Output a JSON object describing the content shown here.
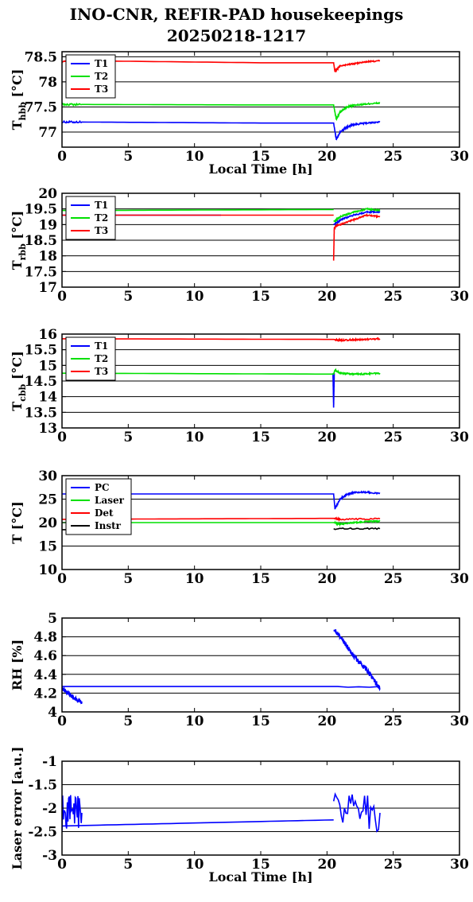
{
  "title_line1": "INO-CNR, REFIR-PAD housekeepings",
  "title_line2": "20250218-1217",
  "colors": {
    "blue": "#0000ff",
    "green": "#00e000",
    "red": "#ff0000",
    "black": "#000000"
  },
  "chart_data": [
    {
      "type": "line",
      "ylabel_main": "T",
      "ylabel_sub": "hbb",
      "ylabel_suffix": " [°C]",
      "xlabel": "Local Time [h]",
      "xlim": [
        0,
        30
      ],
      "ylim": [
        76.7,
        78.6
      ],
      "yticks": [
        77,
        77.5,
        78,
        78.5
      ],
      "ytick_labels": [
        "77",
        "77.5",
        "78",
        "78.5"
      ],
      "xticks": [
        0,
        5,
        10,
        15,
        20,
        25,
        30
      ],
      "xtick_labels": [
        "0",
        "5",
        "10",
        "15",
        "20",
        "25",
        "30"
      ],
      "grid": "y",
      "legend": "top-left",
      "series": [
        {
          "name": "T1",
          "color": "blue",
          "x": [
            0,
            1.5,
            15,
            20.5,
            20.7,
            21,
            21.5,
            22,
            23,
            24
          ],
          "y": [
            77.2,
            77.2,
            77.18,
            77.18,
            76.85,
            77.0,
            77.1,
            77.15,
            77.18,
            77.2
          ]
        },
        {
          "name": "T2",
          "color": "green",
          "x": [
            0,
            1.5,
            15,
            20.5,
            20.7,
            21,
            21.5,
            22,
            23,
            24
          ],
          "y": [
            77.55,
            77.55,
            77.54,
            77.54,
            77.25,
            77.4,
            77.5,
            77.53,
            77.56,
            77.58
          ]
        },
        {
          "name": "T3",
          "color": "red",
          "x": [
            0,
            1.5,
            15,
            20.5,
            20.6,
            21,
            22,
            23,
            24
          ],
          "y": [
            78.4,
            78.42,
            78.38,
            78.38,
            78.2,
            78.32,
            78.36,
            78.4,
            78.42
          ]
        }
      ]
    },
    {
      "type": "line",
      "ylabel_main": "T",
      "ylabel_sub": "rbb",
      "ylabel_suffix": " [°C]",
      "xlabel": "",
      "xlim": [
        0,
        30
      ],
      "ylim": [
        17,
        20
      ],
      "yticks": [
        17,
        17.5,
        18,
        18.5,
        19,
        19.5,
        20
      ],
      "ytick_labels": [
        "17",
        "17.5",
        "18",
        "18.5",
        "19",
        "19.5",
        "20"
      ],
      "xticks": [
        0,
        5,
        10,
        15,
        20,
        25,
        30
      ],
      "xtick_labels": [
        "0",
        "5",
        "10",
        "15",
        "20",
        "25",
        "30"
      ],
      "grid": "y",
      "legend": "top-left",
      "series": [
        {
          "name": "T1",
          "color": "blue",
          "x": [
            0,
            12
          ],
          "y": [
            19.3,
            19.3
          ],
          "x2": [
            20.5,
            20.7,
            21,
            22,
            23,
            24
          ],
          "y2": [
            19.0,
            19.05,
            19.15,
            19.3,
            19.4,
            19.4
          ]
        },
        {
          "name": "T2",
          "color": "green",
          "x": [
            0,
            20.5
          ],
          "y": [
            19.45,
            19.48
          ],
          "x2": [
            20.5,
            20.7,
            21,
            22,
            23,
            24
          ],
          "y2": [
            19.1,
            19.15,
            19.25,
            19.4,
            19.5,
            19.45
          ]
        },
        {
          "name": "T3",
          "color": "red",
          "x": [
            0,
            20.5
          ],
          "y": [
            19.3,
            19.3
          ],
          "x2": [
            20.5,
            20.55,
            20.7,
            21,
            22,
            23,
            24
          ],
          "y2": [
            17.85,
            18.9,
            18.95,
            19.0,
            19.15,
            19.3,
            19.25
          ]
        }
      ]
    },
    {
      "type": "line",
      "ylabel_main": "T",
      "ylabel_sub": "cbb",
      "ylabel_suffix": " [°C]",
      "xlabel": "",
      "xlim": [
        0,
        30
      ],
      "ylim": [
        13,
        16
      ],
      "yticks": [
        13,
        13.5,
        14,
        14.5,
        15,
        15.5,
        16
      ],
      "ytick_labels": [
        "13",
        "13.5",
        "14",
        "14.5",
        "15",
        "15.5",
        "16"
      ],
      "xticks": [
        0,
        5,
        10,
        15,
        20,
        25,
        30
      ],
      "xtick_labels": [
        "0",
        "5",
        "10",
        "15",
        "20",
        "25",
        "30"
      ],
      "grid": "y",
      "legend": "top-left",
      "series": [
        {
          "name": "T1",
          "color": "blue",
          "x": [
            20.45,
            20.5,
            20.55
          ],
          "y": [
            14.75,
            13.65,
            14.75
          ]
        },
        {
          "name": "T2",
          "color": "green",
          "x": [
            0,
            20.5,
            20.6,
            21,
            22,
            23,
            24
          ],
          "y": [
            14.75,
            14.72,
            14.85,
            14.75,
            14.72,
            14.73,
            14.75
          ]
        },
        {
          "name": "T3",
          "color": "red",
          "x": [
            0,
            20.5,
            21,
            22,
            23,
            24
          ],
          "y": [
            15.85,
            15.83,
            15.8,
            15.82,
            15.83,
            15.85
          ]
        }
      ]
    },
    {
      "type": "line",
      "ylabel_main": "T",
      "ylabel_sub": "",
      "ylabel_suffix": " [°C]",
      "xlabel": "",
      "xlim": [
        0,
        30
      ],
      "ylim": [
        10,
        30
      ],
      "yticks": [
        10,
        15,
        20,
        25,
        30
      ],
      "ytick_labels": [
        "10",
        "15",
        "20",
        "25",
        "30"
      ],
      "xticks": [
        0,
        5,
        10,
        15,
        20,
        25,
        30
      ],
      "xtick_labels": [
        "0",
        "5",
        "10",
        "15",
        "20",
        "25",
        "30"
      ],
      "grid": "y",
      "legend": "top-left",
      "series": [
        {
          "name": "PC",
          "color": "blue",
          "x": [
            0,
            20.5,
            20.6,
            21,
            21.5,
            22,
            23,
            24
          ],
          "y": [
            26.1,
            26.1,
            23.0,
            25.0,
            26.0,
            26.4,
            26.5,
            26.2
          ]
        },
        {
          "name": "Laser",
          "color": "green",
          "x": [
            0,
            20.5,
            21,
            22,
            23,
            24
          ],
          "y": [
            20.0,
            20.0,
            19.7,
            20.0,
            20.2,
            20.3
          ]
        },
        {
          "name": "Det",
          "color": "red",
          "x": [
            0,
            10,
            20.5,
            21,
            24
          ],
          "y": [
            20.7,
            20.8,
            20.9,
            20.7,
            20.8
          ]
        },
        {
          "name": "Instr",
          "color": "black",
          "x": [
            0,
            1.5
          ],
          "y": [
            18.5,
            18.5
          ],
          "x2": [
            20.5,
            24
          ],
          "y2": [
            18.7,
            18.7
          ]
        }
      ]
    },
    {
      "type": "line",
      "ylabel_main": "RH [%]",
      "ylabel_sub": "",
      "ylabel_suffix": "",
      "xlabel": "",
      "xlim": [
        0,
        30
      ],
      "ylim": [
        4,
        5
      ],
      "yticks": [
        4,
        4.2,
        4.4,
        4.6,
        4.8,
        5
      ],
      "ytick_labels": [
        "4",
        "4.2",
        "4.4",
        "4.6",
        "4.8",
        "5"
      ],
      "xticks": [
        0,
        5,
        10,
        15,
        20,
        25,
        30
      ],
      "xtick_labels": [
        "0",
        "5",
        "10",
        "15",
        "20",
        "25",
        "30"
      ],
      "grid": "y",
      "legend": "none",
      "series": [
        {
          "name": "RH",
          "color": "blue",
          "x": [
            0,
            0.3,
            0.6,
            0.9,
            1.2,
            1.5
          ],
          "y": [
            4.25,
            4.22,
            4.18,
            4.15,
            4.12,
            4.1
          ],
          "x2": [
            0,
            24
          ],
          "y2": [
            4.27,
            4.27
          ],
          "x3": [
            20.5,
            21,
            21.5,
            22,
            22.5,
            23,
            23.5,
            24
          ],
          "y3": [
            4.88,
            4.8,
            4.7,
            4.6,
            4.52,
            4.45,
            4.35,
            4.25
          ]
        }
      ]
    },
    {
      "type": "line",
      "ylabel_main": "Laser error [a.u.]",
      "ylabel_sub": "",
      "ylabel_suffix": "",
      "xlabel": "Local Time [h]",
      "xlim": [
        0,
        30
      ],
      "ylim": [
        -3,
        -1
      ],
      "yticks": [
        -3,
        -2.5,
        -2,
        -1.5,
        -1
      ],
      "ytick_labels": [
        "-3",
        "-2.5",
        "-2",
        "-1.5",
        "-1"
      ],
      "xticks": [
        0,
        5,
        10,
        15,
        20,
        25,
        30
      ],
      "xtick_labels": [
        "0",
        "5",
        "10",
        "15",
        "20",
        "25",
        "30"
      ],
      "grid": "y",
      "legend": "none",
      "series": [
        {
          "name": "Laser error",
          "color": "blue",
          "x": [
            0,
            20.5
          ],
          "y": [
            -2.38,
            -2.25
          ],
          "x2": [
            0,
            1.5
          ],
          "y2": [
            -2.1,
            -2.1
          ],
          "x3": [
            20.5,
            24
          ],
          "y3": [
            -2.1,
            -2.1
          ]
        }
      ]
    }
  ]
}
